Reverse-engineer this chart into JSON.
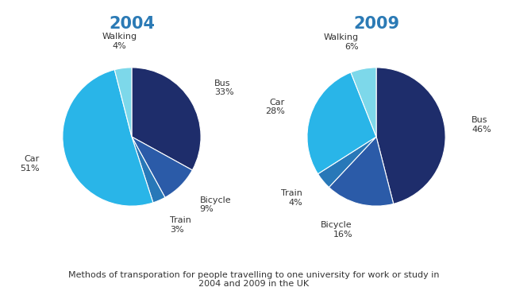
{
  "title_2004": "2004",
  "title_2009": "2009",
  "title_color": "#2b7ab5",
  "caption": "Methods of transporation for people travelling to one university for work or study in\n2004 and 2009 in the UK",
  "caption_color": "#333333",
  "categories": [
    "Bus",
    "Bicycle",
    "Train",
    "Car",
    "Walking"
  ],
  "values_2004": [
    33,
    9,
    3,
    51,
    4
  ],
  "values_2009": [
    46,
    16,
    4,
    28,
    6
  ],
  "colors": {
    "Bus": "#1e2d6b",
    "Bicycle": "#2b5ba8",
    "Train": "#2878b8",
    "Car": "#29b5e8",
    "Walking": "#7dd8ea"
  },
  "label_color": "#333333",
  "figsize": [
    6.4,
    3.66
  ],
  "dpi": 100
}
